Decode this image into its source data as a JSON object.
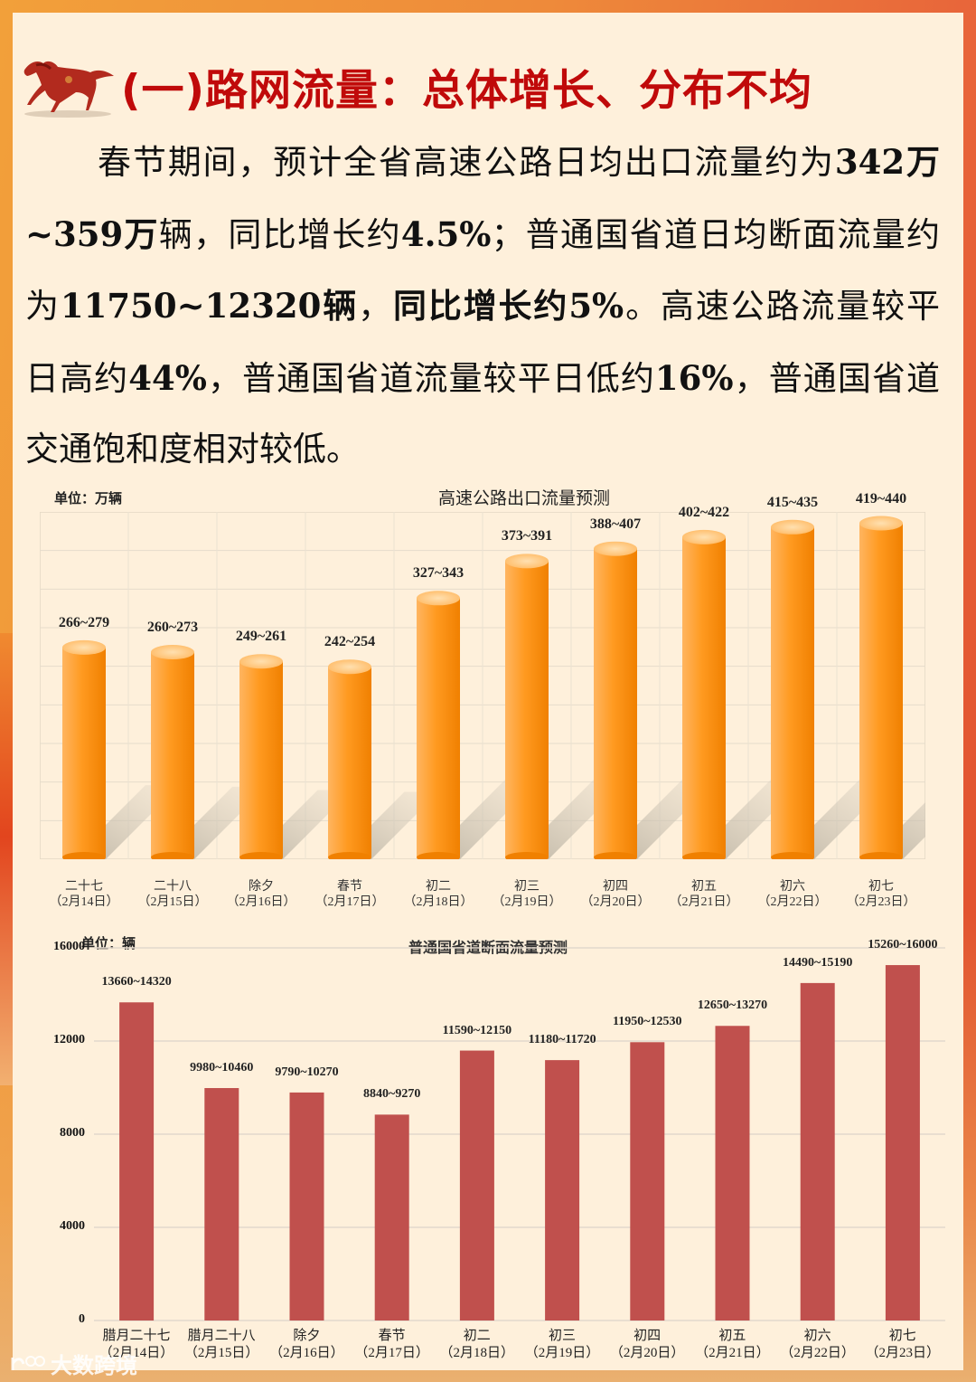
{
  "title": "(一)路网流量：总体增长、分布不均",
  "paragraph": {
    "s1": "春节期间，预计全省高速公路日均出口流量约为",
    "b1": "342",
    "b2": "万",
    "b3": "~359",
    "b4": "万",
    "s2": "辆，同比增长约",
    "b5": "4.5%",
    "s3": "；普通国省道日均断面流量约为",
    "b6": "11750~12320",
    "b7": "辆",
    "s4": "，",
    "b8": "同比增长约",
    "b9": "5%",
    "s5": "。高速公路流量较平日高约",
    "b10": "44%",
    "s6": "，普通国省道流量较平日低约",
    "b11": "16%",
    "s7": "，普通国省道交通饱和度相对较低。"
  },
  "watermark": "大数跨境",
  "colors": {
    "title_red": "#c00a0a",
    "panel_bg": "#fef0db",
    "orange_bar": "#ff9818",
    "red_bar": "#c0504d"
  },
  "chart_data": [
    {
      "type": "bar",
      "style": "3d-cylinder",
      "title": "高速公路出口流量预测",
      "unit_label": "单位：万辆",
      "categories": [
        "二十七（2月14日）",
        "二十八（2月15日）",
        "除夕（2月16日）",
        "春节（2月17日）",
        "初二（2月18日）",
        "初三（2月19日）",
        "初四（2月20日）",
        "初五（2月21日）",
        "初六（2月22日）",
        "初七（2月23日）"
      ],
      "category_top": [
        "二十七",
        "二十八",
        "除夕",
        "春节",
        "初二",
        "初三",
        "初四",
        "初五",
        "初六",
        "初七"
      ],
      "category_bottom": [
        "（2月14日）",
        "（2月15日）",
        "（2月16日）",
        "（2月17日）",
        "（2月18日）",
        "（2月19日）",
        "（2月20日）",
        "（2月21日）",
        "（2月22日）",
        "（2月23日）"
      ],
      "data_labels": [
        "266~279",
        "260~273",
        "249~261",
        "242~254",
        "327~343",
        "373~391",
        "388~407",
        "402~422",
        "415~435",
        "419~440"
      ],
      "series": [
        {
          "name": "low",
          "values": [
            266,
            260,
            249,
            242,
            327,
            373,
            388,
            402,
            415,
            419
          ]
        },
        {
          "name": "high",
          "values": [
            279,
            273,
            261,
            254,
            343,
            391,
            407,
            422,
            435,
            440
          ]
        }
      ],
      "xlabel": "",
      "ylabel": "万辆",
      "ylim": [
        0,
        450
      ],
      "grid": true
    },
    {
      "type": "bar",
      "title": "普通国省道断面流量预测",
      "unit_label": "单位：辆",
      "categories": [
        "腊月二十七（2月14日）",
        "腊月二十八（2月15日）",
        "除夕（2月16日）",
        "春节（2月17日）",
        "初二（2月18日）",
        "初三（2月19日）",
        "初四（2月20日）",
        "初五（2月21日）",
        "初六（2月22日）",
        "初七（2月23日）"
      ],
      "category_top": [
        "腊月二十七",
        "腊月二十八",
        "除夕",
        "春节",
        "初二",
        "初三",
        "初四",
        "初五",
        "初六",
        "初七"
      ],
      "category_bottom": [
        "（2月14日）",
        "（2月15日）",
        "（2月16日）",
        "（2月17日）",
        "（2月18日）",
        "（2月19日）",
        "（2月20日）",
        "（2月21日）",
        "（2月22日）",
        "（2月23日）"
      ],
      "data_labels": [
        "13660~14320",
        "9980~10460",
        "9790~10270",
        "8840~9270",
        "11590~12150",
        "11180~11720",
        "11950~12530",
        "12650~13270",
        "14490~15190",
        "15260~16000"
      ],
      "series": [
        {
          "name": "low",
          "values": [
            13660,
            9980,
            9790,
            8840,
            11590,
            11180,
            11950,
            12650,
            14490,
            15260
          ]
        },
        {
          "name": "high",
          "values": [
            14320,
            10460,
            10270,
            9270,
            12150,
            11720,
            12530,
            13270,
            15190,
            16000
          ]
        }
      ],
      "yticks": [
        "0",
        "4000",
        "8000",
        "12000",
        "16000"
      ],
      "xlabel": "",
      "ylabel": "辆",
      "ylim": [
        0,
        16000
      ],
      "grid": true
    }
  ]
}
